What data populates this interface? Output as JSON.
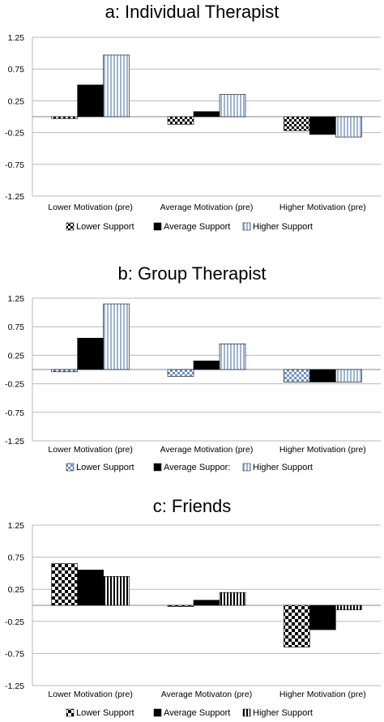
{
  "chart_data": [
    {
      "type": "bar",
      "title": "a: Individual Therapist",
      "categories": [
        "Lower Motivation (pre)",
        "Average Motivation (pre)",
        "Higher Motivation (pre)"
      ],
      "series": [
        {
          "name": "Lower Support",
          "pattern": "checker",
          "color": "#000000",
          "values": [
            -0.03,
            -0.12,
            -0.22
          ]
        },
        {
          "name": "Average Support",
          "pattern": "solid",
          "color": "#000000",
          "values": [
            0.5,
            0.08,
            -0.28
          ]
        },
        {
          "name": "Higher Support",
          "pattern": "vstripe",
          "color": "#9db4d8",
          "values": [
            0.97,
            0.35,
            -0.32
          ]
        }
      ],
      "yticks": [
        "1.25",
        "0.75",
        "0.25",
        "-0.25",
        "-0.75",
        "-1.25"
      ],
      "ylim": [
        -1.25,
        1.25
      ],
      "grid": true,
      "legend": "bottom"
    },
    {
      "type": "bar",
      "title": "b: Group Therapist",
      "categories": [
        "Lower Motivation (pre)",
        "Average Motivation (pre)",
        "Higher Motivation (pre)"
      ],
      "series": [
        {
          "name": "Lower Support",
          "pattern": "checker",
          "color": "#6b8fc9",
          "values": [
            -0.04,
            -0.12,
            -0.22
          ]
        },
        {
          "name": "Average Suppor:",
          "pattern": "solid",
          "color": "#000000",
          "values": [
            0.55,
            0.15,
            -0.22
          ]
        },
        {
          "name": "Higher Support",
          "pattern": "vstripe",
          "color": "#9db4d8",
          "values": [
            1.15,
            0.45,
            -0.22
          ]
        }
      ],
      "yticks": [
        "1.25",
        "0.75",
        "0.25",
        "-0.25",
        "-0.75",
        "-1.25"
      ],
      "ylim": [
        -1.25,
        1.25
      ],
      "grid": true,
      "legend": "bottom"
    },
    {
      "type": "bar",
      "title": "c: Friends",
      "categories": [
        "Lower Motivation (pre)",
        "Average Motivaton (pre)",
        "Higher Motivation (pre)"
      ],
      "series": [
        {
          "name": "Lower Support",
          "pattern": "checker",
          "color": "#000000",
          "values": [
            0.65,
            -0.02,
            -0.65
          ]
        },
        {
          "name": "Average Support",
          "pattern": "solid",
          "color": "#000000",
          "values": [
            0.55,
            0.08,
            -0.38
          ]
        },
        {
          "name": "Higher Support",
          "pattern": "vstripe",
          "color": "#000000",
          "values": [
            0.45,
            0.2,
            -0.07
          ]
        }
      ],
      "yticks": [
        "1.25",
        "0.75",
        "0.25",
        "-0.25",
        "-0.75",
        "-1.25"
      ],
      "ylim": [
        -1.25,
        1.25
      ],
      "grid": true,
      "legend": "bottom"
    }
  ]
}
